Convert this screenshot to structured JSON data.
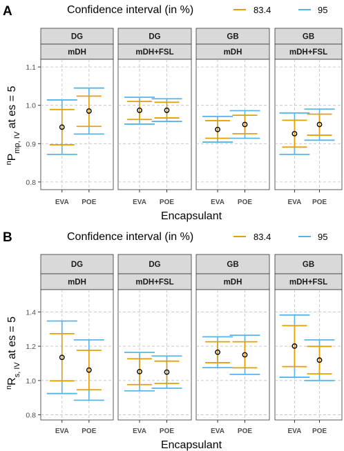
{
  "chart_data": [
    {
      "type": "errorbar",
      "panel_label": "A",
      "legend": {
        "title": "Confidence interval (in %)",
        "entries": [
          {
            "label": "83.4",
            "color": "#E69F00"
          },
          {
            "label": "95",
            "color": "#56B4E9"
          }
        ]
      },
      "ylabel_main": "P",
      "ylabel_pre": "n",
      "ylabel_sub": "mp, IV",
      "ylabel_post": " at es = 5",
      "xlabel": "Encapsulant",
      "ylim": [
        0.78,
        1.12
      ],
      "yticks": [
        "0.8",
        "0.9",
        "1.0",
        "1.1"
      ],
      "grid": true,
      "categories": [
        "EVA",
        "POE"
      ],
      "facets": [
        {
          "strip1": "DG",
          "strip2": "mDH",
          "points": [
            {
              "x": "EVA",
              "mean": 0.943,
              "ci83": [
                0.897,
                0.989
              ],
              "ci95": [
                0.872,
                1.014
              ]
            },
            {
              "x": "POE",
              "mean": 0.985,
              "ci83": [
                0.945,
                1.024
              ],
              "ci95": [
                0.925,
                1.045
              ]
            }
          ]
        },
        {
          "strip1": "DG",
          "strip2": "mDH+FSL",
          "points": [
            {
              "x": "EVA",
              "mean": 0.987,
              "ci83": [
                0.963,
                1.01
              ],
              "ci95": [
                0.951,
                1.021
              ]
            },
            {
              "x": "POE",
              "mean": 0.987,
              "ci83": [
                0.967,
                1.008
              ],
              "ci95": [
                0.958,
                1.017
              ]
            }
          ]
        },
        {
          "strip1": "GB",
          "strip2": "mDH",
          "points": [
            {
              "x": "EVA",
              "mean": 0.937,
              "ci83": [
                0.914,
                0.96
              ],
              "ci95": [
                0.904,
                0.971
              ]
            },
            {
              "x": "POE",
              "mean": 0.95,
              "ci83": [
                0.926,
                0.974
              ],
              "ci95": [
                0.914,
                0.986
              ]
            }
          ]
        },
        {
          "strip1": "GB",
          "strip2": "mDH+FSL",
          "points": [
            {
              "x": "EVA",
              "mean": 0.926,
              "ci83": [
                0.891,
                0.961
              ],
              "ci95": [
                0.872,
                0.98
              ]
            },
            {
              "x": "POE",
              "mean": 0.95,
              "ci83": [
                0.922,
                0.977
              ],
              "ci95": [
                0.909,
                0.99
              ]
            }
          ]
        }
      ]
    },
    {
      "type": "errorbar",
      "panel_label": "B",
      "legend": {
        "title": "Confidence interval (in %)",
        "entries": [
          {
            "label": "83.4",
            "color": "#E69F00"
          },
          {
            "label": "95",
            "color": "#56B4E9"
          }
        ]
      },
      "ylabel_main": "R",
      "ylabel_pre": "n",
      "ylabel_sub": "s, IV",
      "ylabel_post": " at es = 5",
      "xlabel": "Encapsulant",
      "ylim": [
        0.77,
        1.53
      ],
      "yticks": [
        "0.8",
        "1.0",
        "1.2",
        "1.4"
      ],
      "grid": true,
      "categories": [
        "EVA",
        "POE"
      ],
      "facets": [
        {
          "strip1": "DG",
          "strip2": "mDH",
          "points": [
            {
              "x": "EVA",
              "mean": 1.135,
              "ci83": [
                0.998,
                1.273
              ],
              "ci95": [
                0.924,
                1.347
              ]
            },
            {
              "x": "POE",
              "mean": 1.061,
              "ci83": [
                0.946,
                1.176
              ],
              "ci95": [
                0.885,
                1.237
              ]
            }
          ]
        },
        {
          "strip1": "DG",
          "strip2": "mDH+FSL",
          "points": [
            {
              "x": "EVA",
              "mean": 1.052,
              "ci83": [
                0.976,
                1.127
              ],
              "ci95": [
                0.94,
                1.164
              ]
            },
            {
              "x": "POE",
              "mean": 1.049,
              "ci83": [
                0.983,
                1.113
              ],
              "ci95": [
                0.955,
                1.143
              ]
            }
          ]
        },
        {
          "strip1": "GB",
          "strip2": "mDH",
          "points": [
            {
              "x": "EVA",
              "mean": 1.165,
              "ci83": [
                1.104,
                1.226
              ],
              "ci95": [
                1.075,
                1.255
              ]
            },
            {
              "x": "POE",
              "mean": 1.15,
              "ci83": [
                1.074,
                1.226
              ],
              "ci95": [
                1.036,
                1.264
              ]
            }
          ]
        },
        {
          "strip1": "GB",
          "strip2": "mDH+FSL",
          "points": [
            {
              "x": "EVA",
              "mean": 1.201,
              "ci83": [
                1.081,
                1.32
              ],
              "ci95": [
                1.019,
                1.382
              ]
            },
            {
              "x": "POE",
              "mean": 1.119,
              "ci83": [
                1.039,
                1.199
              ],
              "ci95": [
                1.0,
                1.237
              ]
            }
          ]
        }
      ]
    }
  ]
}
